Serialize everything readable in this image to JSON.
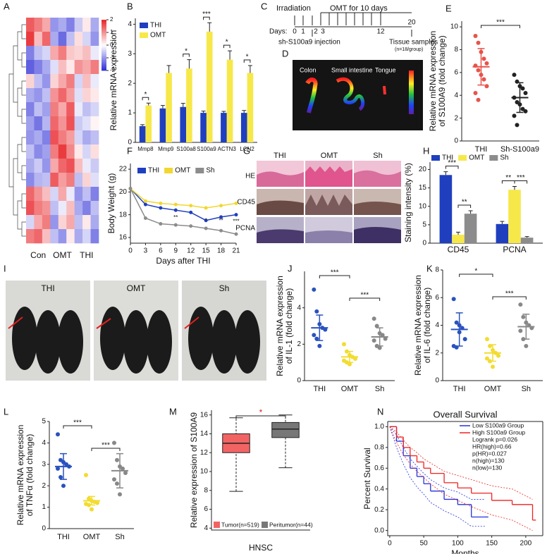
{
  "chart_data": [
    {
      "panel": "A",
      "type": "heatmap",
      "groups": [
        "Con",
        "OMT",
        "THI"
      ],
      "values": [
        [
          1.5,
          1.2,
          0.8,
          -1.0,
          -0.8,
          -1.2,
          -0.5,
          0.2,
          -0.8
        ],
        [
          1.8,
          0.6,
          1.4,
          -0.8,
          -1.4,
          -0.6,
          0.3,
          -0.4,
          -1.0
        ],
        [
          -1.2,
          -0.6,
          -0.4,
          0.8,
          1.2,
          0.5,
          0.4,
          0.6,
          -0.2
        ],
        [
          -1.5,
          -1.2,
          -0.8,
          -0.3,
          0.6,
          0.2,
          1.0,
          0.8,
          1.2
        ],
        [
          0.4,
          -0.6,
          -1.0,
          0.4,
          0.8,
          1.2,
          -0.4,
          0.6,
          -0.2
        ],
        [
          -0.8,
          -1.0,
          -0.6,
          1.0,
          1.4,
          0.9,
          -0.3,
          0.4,
          0.2
        ],
        [
          -1.2,
          -0.6,
          -0.9,
          1.2,
          0.8,
          1.5,
          -0.2,
          -0.6,
          -0.4
        ],
        [
          -0.9,
          -1.3,
          -0.7,
          1.4,
          1.0,
          1.6,
          -0.5,
          -0.3,
          0.1
        ],
        [
          -1.0,
          -0.8,
          -1.2,
          1.6,
          1.2,
          0.9,
          -0.4,
          -0.8,
          -0.6
        ],
        [
          -0.6,
          -1.1,
          -0.9,
          1.2,
          1.8,
          1.1,
          0.2,
          -0.4,
          0.3
        ],
        [
          -0.8,
          -0.5,
          -1.0,
          0.8,
          1.4,
          1.6,
          0.6,
          -0.2,
          -0.5
        ],
        [
          -1.1,
          -0.7,
          -0.6,
          1.5,
          0.9,
          1.2,
          -0.6,
          0.4,
          -0.3
        ],
        [
          1.4,
          1.0,
          0.6,
          -0.4,
          0.8,
          -0.2,
          -1.0,
          -0.6,
          -1.2
        ],
        [
          1.6,
          1.2,
          1.0,
          -0.6,
          -0.2,
          0.6,
          -0.8,
          -1.2,
          -0.6
        ],
        [
          -0.4,
          0.8,
          1.2,
          -1.0,
          0.4,
          0.8,
          -0.6,
          0.2,
          -0.8
        ],
        [
          1.2,
          1.4,
          0.6,
          -0.6,
          -1.0,
          0.2,
          -0.8,
          -0.4,
          -1.2
        ]
      ],
      "zlim": [
        -2,
        2
      ],
      "zticks": [
        2,
        1,
        0,
        -1,
        -2
      ],
      "colors": [
        "#2b2bd6",
        "#ffffff",
        "#e8262a"
      ]
    },
    {
      "panel": "B",
      "type": "bar",
      "ylabel": [
        "Relative mRNA expression"
      ],
      "categories": [
        "Mmp8",
        "Mmp9",
        "S100a8",
        "S100a9",
        "ACTN3",
        "LCN2"
      ],
      "series": [
        {
          "name": "THI",
          "color": "#1f3fbf",
          "values": [
            0.55,
            1.15,
            1.2,
            1.0,
            1.0,
            1.0
          ],
          "errors": [
            0.05,
            0.1,
            0.12,
            0.06,
            0.05,
            0.08
          ]
        },
        {
          "name": "OMT",
          "color": "#f7e84a",
          "values": [
            1.25,
            2.35,
            2.5,
            3.75,
            2.8,
            2.35
          ],
          "errors": [
            0.08,
            0.25,
            0.3,
            0.3,
            0.3,
            0.25
          ]
        }
      ],
      "ylim": [
        0,
        4.2
      ],
      "yticks": [
        0,
        1,
        2,
        3,
        4
      ],
      "significance": [
        "*",
        null,
        "*",
        "***",
        "*",
        "*"
      ]
    },
    {
      "panel": "E",
      "type": "dot",
      "ylabel": [
        "Relative mRNA expression",
        "of S100A9 (fold change)"
      ],
      "categories": [
        "THI",
        "Sh-S100a9"
      ],
      "colors": [
        "#e8534a",
        "#222222"
      ],
      "points": [
        [
          9.2,
          8.6,
          7.8,
          7.2,
          6.8,
          6.6,
          6.2,
          5.8,
          5.4,
          4.8,
          4.2,
          3.6
        ],
        [
          5.8,
          5.2,
          4.8,
          4.6,
          4.2,
          3.8,
          3.4,
          3.2,
          2.8,
          2.6,
          2.2,
          1.4
        ]
      ],
      "means": [
        6.5,
        3.8
      ],
      "sds": [
        1.6,
        1.3
      ],
      "ylim": [
        0,
        10.5
      ],
      "yticks": [
        0,
        2,
        4,
        6,
        8,
        10
      ],
      "significance": [
        "***"
      ]
    },
    {
      "panel": "F",
      "type": "line",
      "ylabel": [
        "Body Weight (g)"
      ],
      "xlabel": "Days after THI",
      "x": [
        0,
        3,
        6,
        9,
        12,
        15,
        18,
        21
      ],
      "series": [
        {
          "name": "THI",
          "color": "#1f3fbf",
          "values": [
            20.3,
            18.9,
            18.6,
            18.4,
            18.2,
            17.5,
            17.8,
            18.0
          ]
        },
        {
          "name": "OMT",
          "color": "#f2d72e",
          "values": [
            20.3,
            19.2,
            19.0,
            18.9,
            18.8,
            18.6,
            18.8,
            19.0
          ]
        },
        {
          "name": "Sh",
          "color": "#8c8c8c",
          "values": [
            20.3,
            17.7,
            17.2,
            17.1,
            17.0,
            16.8,
            16.6,
            16.3
          ]
        }
      ],
      "xlim": [
        0,
        21
      ],
      "xticks": [
        0,
        3,
        6,
        9,
        12,
        15,
        18,
        21
      ],
      "ylim": [
        15.5,
        22.5
      ],
      "yticks": [
        16,
        18,
        20,
        22
      ],
      "significance": [
        null,
        null,
        null,
        "**",
        null,
        "*",
        "**",
        "***"
      ]
    },
    {
      "panel": "H",
      "type": "bar",
      "ylabel": [
        "Staining intensity (%)"
      ],
      "categories": [
        "CD45",
        "PCNA"
      ],
      "series": [
        {
          "name": "THI",
          "color": "#1f3fbf",
          "values": [
            18.5,
            5.2
          ],
          "errors": [
            0.9,
            0.7
          ]
        },
        {
          "name": "OMT",
          "color": "#f7e84a",
          "values": [
            2.3,
            14.5
          ],
          "errors": [
            0.7,
            0.9
          ]
        },
        {
          "name": "Sh",
          "color": "#8c8c8c",
          "values": [
            8,
            1.5
          ],
          "errors": [
            0.8,
            0.3
          ]
        }
      ],
      "ylim": [
        0,
        22
      ],
      "yticks": [
        0,
        5,
        10,
        15,
        20
      ],
      "significance": [
        [
          "***",
          "**"
        ],
        [
          "**",
          "***"
        ]
      ]
    },
    {
      "panel": "J",
      "type": "dot",
      "ylabel": [
        "Relative mRNA expression",
        "of IL-1 (fold change)"
      ],
      "categories": [
        "THI",
        "OMT",
        "Sh"
      ],
      "colors": [
        "#2a52be",
        "#f2dc2e",
        "#888888"
      ],
      "points": [
        [
          5.0,
          3.8,
          3.1,
          2.9,
          2.8,
          2.5,
          2.3,
          1.9
        ],
        [
          2.0,
          1.6,
          1.4,
          1.3,
          1.2,
          1.1,
          1.0,
          0.9
        ],
        [
          3.4,
          3.0,
          2.6,
          2.5,
          2.3,
          2.2,
          1.9,
          1.8
        ]
      ],
      "means": [
        2.9,
        1.3,
        2.4
      ],
      "sds": [
        0.7,
        0.3,
        0.5
      ],
      "ylim": [
        0,
        6
      ],
      "yticks": [
        0,
        2,
        4
      ],
      "significance": [
        "***",
        "***"
      ]
    },
    {
      "panel": "K",
      "type": "dot",
      "ylabel": [
        "Relative mRNA expression",
        "of IL-6 (fold change)"
      ],
      "categories": [
        "THI",
        "OMT",
        "Sh"
      ],
      "colors": [
        "#2a52be",
        "#f2dc2e",
        "#888888"
      ],
      "points": [
        [
          5.9,
          4.2,
          4.0,
          3.8,
          3.0,
          2.5,
          2.4,
          3.5
        ],
        [
          3.0,
          2.5,
          2.2,
          2.0,
          1.8,
          1.6,
          1.4,
          1.0
        ],
        [
          5.5,
          4.6,
          4.2,
          4.0,
          3.8,
          3.6,
          3.0,
          2.5
        ]
      ],
      "means": [
        3.7,
        2.0,
        3.9
      ],
      "sds": [
        1.2,
        0.6,
        0.9
      ],
      "ylim": [
        0,
        8
      ],
      "yticks": [
        0,
        2,
        4,
        6,
        8
      ],
      "significance": [
        "*",
        "***"
      ]
    },
    {
      "panel": "L",
      "type": "dot",
      "ylabel": [
        "Relative mRNA expression",
        "of TNFα (fold change)"
      ],
      "categories": [
        "THI",
        "OMT",
        "Sh"
      ],
      "colors": [
        "#2a52be",
        "#f2dc2e",
        "#888888"
      ],
      "points": [
        [
          4.4,
          3.2,
          3.1,
          3.0,
          2.9,
          2.8,
          2.4,
          2.0
        ],
        [
          2.5,
          1.4,
          1.3,
          1.25,
          1.2,
          1.15,
          1.1,
          0.9
        ],
        [
          4.0,
          3.2,
          2.9,
          2.8,
          2.6,
          2.3,
          2.1,
          1.6
        ]
      ],
      "means": [
        2.9,
        1.3,
        2.7
      ],
      "sds": [
        0.6,
        0.2,
        0.8
      ],
      "ylim": [
        0,
        5
      ],
      "yticks": [
        0,
        1,
        2,
        3,
        4,
        5
      ],
      "significance": [
        "***",
        "***"
      ]
    },
    {
      "panel": "M",
      "type": "box",
      "ylabel": [
        "Relative expression of S100A9"
      ],
      "xlabel": "HNSC",
      "categories": [
        "Tumor(n=519)",
        "Peritumor(n=44)"
      ],
      "colors": [
        "#f26464",
        "#777777"
      ],
      "q1": [
        12,
        13.6
      ],
      "median": [
        13,
        14.5
      ],
      "q3": [
        14,
        15.2
      ],
      "whislo": [
        7.9,
        10.4
      ],
      "whishi": [
        15.7,
        16
      ],
      "ylim": [
        3.8,
        16.5
      ],
      "yticks": [
        4,
        6,
        8,
        10,
        12,
        14,
        16
      ],
      "significance": [
        "*"
      ]
    },
    {
      "panel": "N",
      "type": "survival",
      "title": "Overall Survival",
      "xlabel": "Months",
      "ylabel": [
        "Percent Survival"
      ],
      "series": [
        {
          "name": "Low S100a9 Group",
          "color": "#2233dd",
          "x": [
            0,
            10,
            20,
            30,
            40,
            50,
            60,
            80,
            100,
            120,
            140
          ],
          "values": [
            1,
            0.86,
            0.72,
            0.6,
            0.52,
            0.45,
            0.38,
            0.3,
            0.25,
            0.13,
            0.13
          ],
          "ci_lower": [
            1,
            0.8,
            0.64,
            0.51,
            0.42,
            0.35,
            0.27,
            0.19,
            0.13,
            0.04,
            0.04
          ],
          "ci_upper": [
            1,
            0.92,
            0.8,
            0.69,
            0.62,
            0.55,
            0.49,
            0.41,
            0.37,
            0.3,
            0.3
          ]
        },
        {
          "name": "High S100a9 Group",
          "color": "#ee2222",
          "x": [
            0,
            10,
            20,
            30,
            40,
            50,
            60,
            80,
            100,
            120,
            150,
            180,
            210
          ],
          "values": [
            1,
            0.9,
            0.8,
            0.72,
            0.66,
            0.6,
            0.55,
            0.46,
            0.41,
            0.36,
            0.29,
            0.25,
            0.1
          ],
          "ci_lower": [
            1,
            0.85,
            0.73,
            0.64,
            0.57,
            0.51,
            0.45,
            0.35,
            0.29,
            0.23,
            0.15,
            0.1,
            0.0
          ],
          "ci_upper": [
            1,
            0.95,
            0.87,
            0.8,
            0.75,
            0.69,
            0.65,
            0.57,
            0.53,
            0.49,
            0.43,
            0.4,
            0.3
          ]
        }
      ],
      "stats": [
        "Logrank p=0.026",
        "HR(high)=0.66",
        "p(HR)=0.027",
        "n(high)=130",
        "n(low)=130"
      ],
      "xlim": [
        -3,
        225
      ],
      "xticks": [
        0,
        50,
        100,
        150,
        200
      ],
      "ylim": [
        -0.05,
        1.05
      ],
      "yticks": [
        {
          "value": 0,
          "label": "0.0"
        },
        {
          "value": 0.2,
          "label": "0.2"
        },
        {
          "value": 0.4,
          "label": "0.4"
        },
        {
          "value": 0.6,
          "label": "0.6"
        },
        {
          "value": 0.8,
          "label": "0.8"
        },
        {
          "value": 1,
          "label": "1.0"
        }
      ]
    }
  ],
  "timeline": {
    "panel": "C",
    "irradiation": "Irradiation",
    "treatment": "OMT for 10 days",
    "days_label": "Days:",
    "days": [
      0,
      1,
      2,
      3,
      12,
      20
    ],
    "injection": "sh-S100a9 injection",
    "tissue": "Tissue samples",
    "n": "(n=18/group)"
  },
  "imaging": {
    "panel": "D",
    "labels": [
      "Colon",
      "Small intestine",
      "Tongue"
    ]
  },
  "histology": {
    "panel": "G",
    "groups": [
      "THI",
      "OMT",
      "Sh"
    ],
    "stains": [
      "HE",
      "CD45",
      "PCNA"
    ]
  },
  "photos": {
    "panel": "I",
    "groups": [
      "THI",
      "OMT",
      "Sh"
    ]
  }
}
